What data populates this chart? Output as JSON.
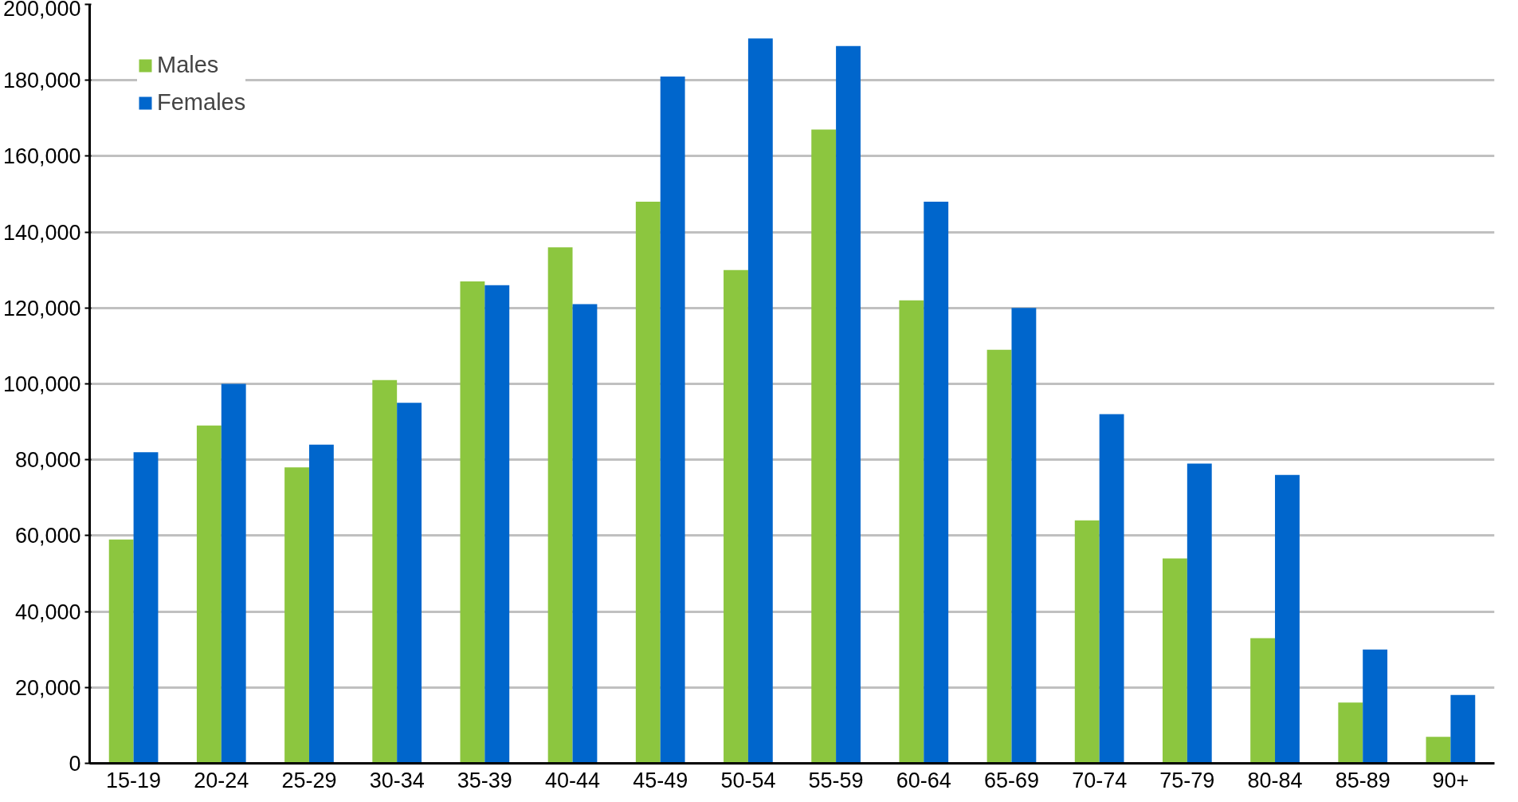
{
  "chart_data": {
    "type": "bar",
    "categories": [
      "15-19",
      "20-24",
      "25-29",
      "30-34",
      "35-39",
      "40-44",
      "45-49",
      "50-54",
      "55-59",
      "60-64",
      "65-69",
      "70-74",
      "75-79",
      "80-84",
      "85-89",
      "90+"
    ],
    "series": [
      {
        "name": "Males",
        "color": "#8cc63f",
        "values": [
          59000,
          89000,
          78000,
          101000,
          127000,
          136000,
          148000,
          130000,
          167000,
          122000,
          109000,
          64000,
          54000,
          33000,
          16000,
          7000
        ]
      },
      {
        "name": "Females",
        "color": "#0066cc",
        "values": [
          82000,
          100000,
          84000,
          95000,
          126000,
          121000,
          181000,
          191000,
          189000,
          148000,
          120000,
          92000,
          79000,
          76000,
          30000,
          18000
        ]
      }
    ],
    "ylim": [
      0,
      200000
    ],
    "yticks": [
      {
        "value": 0,
        "label": "0"
      },
      {
        "value": 20000,
        "label": "20,000"
      },
      {
        "value": 40000,
        "label": "40,000"
      },
      {
        "value": 60000,
        "label": "60,000"
      },
      {
        "value": 80000,
        "label": "80,000"
      },
      {
        "value": 100000,
        "label": "100,000"
      },
      {
        "value": 120000,
        "label": "120,000"
      },
      {
        "value": 140000,
        "label": "140,000"
      },
      {
        "value": 160000,
        "label": "160,000"
      },
      {
        "value": 180000,
        "label": "180,000"
      },
      {
        "value": 200000,
        "label": "200,000"
      }
    ],
    "grid": "y",
    "legend": "top left"
  }
}
